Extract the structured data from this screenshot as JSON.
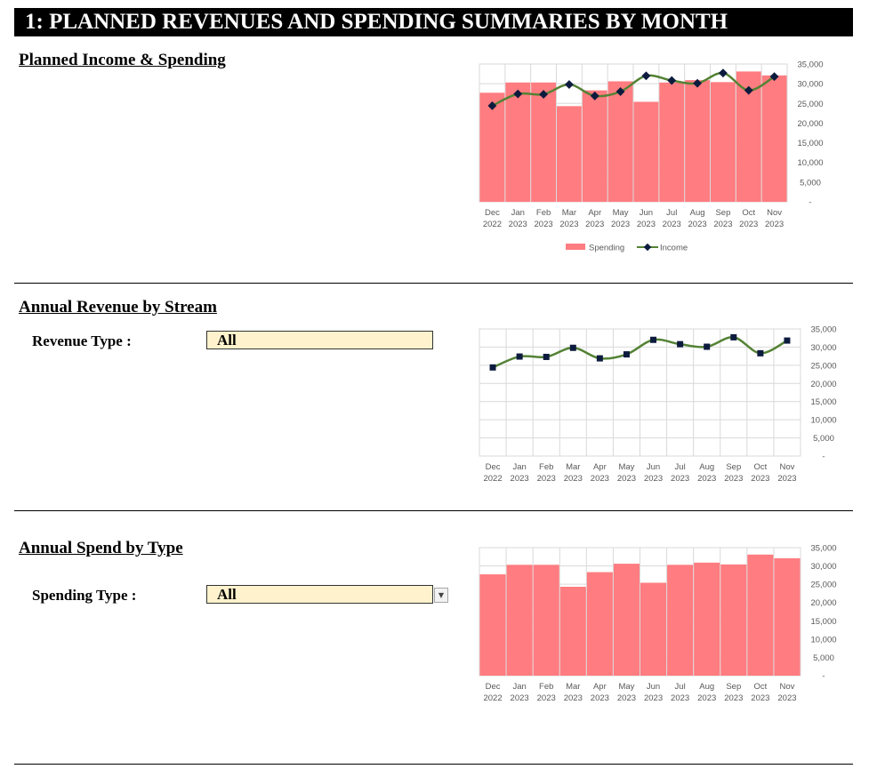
{
  "header": {
    "title": "1:  PLANNED REVENUES AND SPENDING SUMMARIES BY MONTH"
  },
  "sections": {
    "income_spending": {
      "title": "Planned Income & Spending"
    },
    "revenue_stream": {
      "title": "Annual Revenue by Stream",
      "filter_label": "Revenue Type :",
      "filter_value": "All"
    },
    "spend_type": {
      "title": "Annual Spend by Type",
      "filter_label": "Spending Type :",
      "filter_value": "All"
    }
  },
  "colors": {
    "spending": "#ff7c80",
    "income": "#548235",
    "marker": "#0d1b3e",
    "grid": "#d9d9d9"
  },
  "chart_data": [
    {
      "type": "bar",
      "categories": [
        [
          "Dec",
          "2022"
        ],
        [
          "Jan",
          "2023"
        ],
        [
          "Feb",
          "2023"
        ],
        [
          "Mar",
          "2023"
        ],
        [
          "Apr",
          "2023"
        ],
        [
          "May",
          "2023"
        ],
        [
          "Jun",
          "2023"
        ],
        [
          "Jul",
          "2023"
        ],
        [
          "Aug",
          "2023"
        ],
        [
          "Sep",
          "2023"
        ],
        [
          "Oct",
          "2023"
        ],
        [
          "Nov",
          "2023"
        ]
      ],
      "series": [
        {
          "name": "Spending",
          "kind": "bar",
          "values": [
            27700,
            30300,
            30300,
            24300,
            28300,
            30600,
            25400,
            30300,
            30900,
            30400,
            33100,
            32100
          ]
        },
        {
          "name": "Income",
          "kind": "line",
          "marker": "diamond",
          "values": [
            24400,
            27400,
            27300,
            29800,
            26900,
            28000,
            32000,
            30800,
            30100,
            32700,
            28300,
            31800
          ]
        }
      ],
      "yticks": [
        "-",
        "5,000",
        "10,000",
        "15,000",
        "20,000",
        "25,000",
        "30,000",
        "35,000"
      ],
      "ylim": [
        0,
        35000
      ],
      "legend": "bottom"
    },
    {
      "type": "line",
      "categories": [
        [
          "Dec",
          "2022"
        ],
        [
          "Jan",
          "2023"
        ],
        [
          "Feb",
          "2023"
        ],
        [
          "Mar",
          "2023"
        ],
        [
          "Apr",
          "2023"
        ],
        [
          "May",
          "2023"
        ],
        [
          "Jun",
          "2023"
        ],
        [
          "Jul",
          "2023"
        ],
        [
          "Aug",
          "2023"
        ],
        [
          "Sep",
          "2023"
        ],
        [
          "Oct",
          "2023"
        ],
        [
          "Nov",
          "2023"
        ]
      ],
      "series": [
        {
          "kind": "line",
          "marker": "square",
          "values": [
            24400,
            27400,
            27300,
            29800,
            26900,
            28000,
            32000,
            30800,
            30100,
            32700,
            28300,
            31800
          ]
        }
      ],
      "yticks": [
        "-",
        "5,000",
        "10,000",
        "15,000",
        "20,000",
        "25,000",
        "30,000",
        "35,000"
      ],
      "ylim": [
        0,
        35000
      ]
    },
    {
      "type": "bar",
      "categories": [
        [
          "Dec",
          "2022"
        ],
        [
          "Jan",
          "2023"
        ],
        [
          "Feb",
          "2023"
        ],
        [
          "Mar",
          "2023"
        ],
        [
          "Apr",
          "2023"
        ],
        [
          "May",
          "2023"
        ],
        [
          "Jun",
          "2023"
        ],
        [
          "Jul",
          "2023"
        ],
        [
          "Aug",
          "2023"
        ],
        [
          "Sep",
          "2023"
        ],
        [
          "Oct",
          "2023"
        ],
        [
          "Nov",
          "2023"
        ]
      ],
      "series": [
        {
          "kind": "bar",
          "values": [
            27700,
            30300,
            30300,
            24300,
            28300,
            30600,
            25400,
            30300,
            30900,
            30400,
            33100,
            32100
          ]
        }
      ],
      "yticks": [
        "-",
        "5,000",
        "10,000",
        "15,000",
        "20,000",
        "25,000",
        "30,000",
        "35,000"
      ],
      "ylim": [
        0,
        35000
      ]
    }
  ]
}
